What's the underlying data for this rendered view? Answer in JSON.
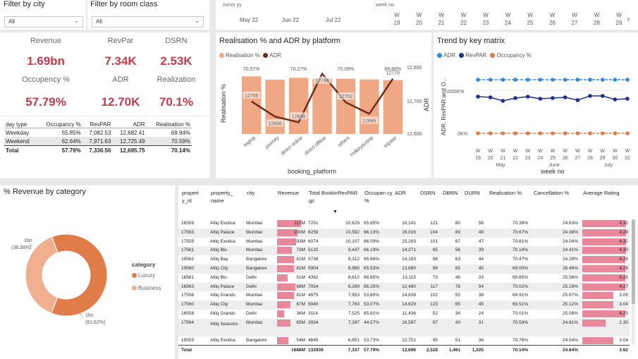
{
  "slicers": {
    "city": {
      "title": "Filter by city",
      "value": "All"
    },
    "room": {
      "title": "Filter by room class",
      "value": "All"
    }
  },
  "date_slicer": {
    "label1": "mmm yy",
    "label2": "week no",
    "months": [
      "May 22",
      "Jun 22",
      "Jul 22"
    ],
    "weeks": [
      {
        "w": "W",
        "n": "19"
      },
      {
        "w": "W",
        "n": "20"
      },
      {
        "w": "W",
        "n": "21"
      },
      {
        "w": "W",
        "n": "22"
      },
      {
        "w": "W",
        "n": "23"
      },
      {
        "w": "W",
        "n": "24"
      },
      {
        "w": "W",
        "n": "25"
      },
      {
        "w": "W",
        "n": "26"
      },
      {
        "w": "W",
        "n": "27"
      },
      {
        "w": "W",
        "n": "28"
      },
      {
        "w": "W",
        "n": "29"
      }
    ],
    "next": "›"
  },
  "kpis": [
    {
      "label": "Revenue",
      "value": "1.69bn"
    },
    {
      "label": "RevPar",
      "value": "7.34K"
    },
    {
      "label": "DSRN",
      "value": "2.53K"
    },
    {
      "label": "Occupency %",
      "value": "57.79%"
    },
    {
      "label": "ADR",
      "value": "12.70K"
    },
    {
      "label": "Realization",
      "value": "70.1%"
    }
  ],
  "daytype": {
    "headers": [
      "day type",
      "Occupancy %",
      "RevPAR",
      "ADR",
      "Realisation %"
    ],
    "rows": [
      [
        "Weekday",
        "55.85%",
        "7,082.53",
        "12,682.41",
        "69.94%"
      ],
      [
        "Weekend",
        "62.64%",
        "7,971.63",
        "12,725.49",
        "70.59%"
      ]
    ],
    "total": [
      "Total",
      "57.79%",
      "7,336.56",
      "12,695.75",
      "70.14%"
    ]
  },
  "colors": {
    "salmon": "#f0a884",
    "dark": "#6b2f1e",
    "red": "#c23d4d",
    "blue": "#2d8ae0",
    "navy": "#1f2f8f",
    "orange": "#e07b4a",
    "pink": "#e8889a"
  },
  "platform_chart": {
    "title": "Realisation % and ADR by platform",
    "legend": [
      "Realisation %",
      "ADR"
    ],
    "y_left_label": "Realisation %",
    "y_right_label": "ADR",
    "x_label": "booking_platform",
    "y_right_ticks": [
      "12,800",
      "12,700",
      "12,600"
    ],
    "chart_data": {
      "type": "bar",
      "categories": [
        "logtrip",
        "journey",
        "direct online",
        "direct offline",
        "others",
        "makeyourtrip",
        "tripster"
      ],
      "series": [
        {
          "name": "Realisation %",
          "values": [
            70.57,
            69.9,
            70.27,
            70.1,
            70.09,
            69.95,
            69.8
          ],
          "labels": [
            "70.57%",
            "",
            "70.27%",
            "",
            "70.09%",
            "",
            "69.80%"
          ]
        },
        {
          "name": "ADR",
          "values": [
            12705,
            12656,
            12638,
            12794,
            12702,
            12665,
            12778
          ]
        }
      ],
      "y_right_range": [
        12600,
        12800
      ]
    }
  },
  "trend_chart": {
    "title": "Trend by key matrix",
    "legend": [
      "ADR",
      "RevPAR",
      "Occupancy %"
    ],
    "y_label": "ADR, RevPAR and O...",
    "y_ticks": [
      "1000K%",
      "0K%"
    ],
    "x_label": "week no",
    "x_weeks": [
      "19",
      "20",
      "21",
      "22",
      "23",
      "24",
      "25",
      "26",
      "27",
      "28",
      "29",
      "30",
      "31"
    ],
    "x_w": "W",
    "months": [
      "May",
      "June",
      "July"
    ],
    "chart_data": {
      "type": "line",
      "x": [
        "W 19",
        "W 20",
        "W 21",
        "W 22",
        "W 23",
        "W 24",
        "W 25",
        "W 26",
        "W 27",
        "W 28",
        "W 29",
        "W 30",
        "W 31"
      ],
      "series": [
        {
          "name": "ADR",
          "values": [
            12.7,
            12.7,
            12.7,
            12.7,
            12.7,
            12.7,
            12.7,
            12.7,
            12.7,
            12.7,
            12.7,
            12.7,
            12.7
          ]
        },
        {
          "name": "RevPAR",
          "values": [
            7.5,
            7.4,
            6.9,
            7.3,
            7.5,
            7.2,
            7.3,
            7.4,
            7.0,
            7.6,
            7.6,
            7.1,
            7.2
          ]
        },
        {
          "name": "Occupancy %",
          "values": [
            0.6,
            0.6,
            0.6,
            0.6,
            0.6,
            0.6,
            0.6,
            0.6,
            0.6,
            0.6,
            0.6,
            0.6,
            0.6
          ]
        }
      ]
    }
  },
  "donut": {
    "title": "% Revenue by category",
    "legend_title": "category",
    "chart_data": {
      "type": "pie",
      "labels": [
        "Luxury",
        "Business"
      ],
      "values": [
        61.62,
        38.38
      ],
      "value_labels": [
        "1bn (61.62%)",
        "1bn (38.38%)"
      ]
    },
    "label_luxury_1": "1bn",
    "label_luxury_2": "(61.62%)",
    "label_business_1": "1bn",
    "label_business_2": "(38.38%)"
  },
  "prop_table": {
    "headers": [
      "propert y_id",
      "property_ name",
      "city",
      "Revenue",
      "Total Bookin gs",
      "RevPAR",
      "Occupan cy %",
      "ADR",
      "DSRN",
      "DBRN",
      "DURN",
      "Realisation %",
      "Cancellation %",
      "Average Rating"
    ],
    "rows": [
      [
        "16559",
        "Atliq Exotica",
        "Mumbai",
        "117M",
        "7251",
        "10,629",
        "65.85%",
        "16,141",
        "121",
        "80",
        "56",
        "70.39%",
        "24.63%",
        "4.32"
      ],
      [
        "17563",
        "Atliq Palace",
        "Mumbai",
        "100M",
        "6259",
        "10,592",
        "66.13%",
        "16,016",
        "104",
        "69",
        "49",
        "70.67%",
        "24.38%",
        "4.29"
      ],
      [
        "17559",
        "Atliq Exotica",
        "Mumbai",
        "93M",
        "6074",
        "10,107",
        "66.09%",
        "15,293",
        "101",
        "67",
        "47",
        "70.81%",
        "24.04%",
        "4.32"
      ],
      [
        "17561",
        "Atliq Blu",
        "Mumbai",
        "73M",
        "5120",
        "9,447",
        "66.19%",
        "14,271",
        "85",
        "56",
        "39",
        "70.14%",
        "24.41%",
        "4.30"
      ],
      [
        "19562",
        "Atliq Bay",
        "Bangalore",
        "81M",
        "5736",
        "9,312",
        "65.66%",
        "14,183",
        "96",
        "63",
        "44",
        "70.47%",
        "24.29%",
        "4.28"
      ],
      [
        "19560",
        "Atliq City",
        "Bangalore",
        "81M",
        "5904",
        "8,965",
        "65.53%",
        "13,680",
        "99",
        "65",
        "45",
        "69.00%",
        "26.46%",
        "4.28"
      ],
      [
        "16561",
        "Atliq Blu",
        "Delhi",
        "51M",
        "4362",
        "8,612",
        "66.65%",
        "13,115",
        "73",
        "48",
        "33",
        "69.85%",
        "25.56%",
        "4.28"
      ],
      [
        "16563",
        "Atliq Palace",
        "Delhi",
        "88M",
        "7054",
        "8,269",
        "66.25%",
        "12,480",
        "117",
        "78",
        "54",
        "70.02%",
        "25.19%",
        "4.27"
      ],
      [
        "17558",
        "Atliq Grands",
        "Mumbai",
        "81M",
        "4975",
        "7,953",
        "53.60%",
        "14,839",
        "102",
        "55",
        "38",
        "69.91%",
        "25.67%",
        "3.05"
      ],
      [
        "17560",
        "Atliq City",
        "Mumbai",
        "67M",
        "5940",
        "7,763",
        "53.07%",
        "14,629",
        "123",
        "65",
        "45",
        "69.51%",
        "25.12%",
        "3.04"
      ],
      [
        "16558",
        "Atliq Grands",
        "Delhi",
        "36M",
        "3114",
        "7,525",
        "65.81%",
        "11,436",
        "52",
        "34",
        "24",
        "70.01%",
        "25.08%",
        "4.25"
      ],
      [
        "17564",
        "Atliq Seasons",
        "Mumbai",
        "65M",
        "3934",
        "7,397",
        "44.57%",
        "16,597",
        "97",
        "43",
        "31",
        "70.59%",
        "24.81%",
        "2.30"
      ],
      [
        "19559",
        "Atliq Exotica",
        "Bangalore",
        "54M",
        "4645",
        "6,851",
        "53.73%",
        "12,751",
        "95",
        "51",
        "36",
        "70.76%",
        "24.54%",
        "3.04"
      ]
    ],
    "total": [
      "Total",
      "",
      "",
      "1688M",
      "132939",
      "7,337",
      "57.79%",
      "12,696",
      "2,528",
      "1,461",
      "1,025",
      "70.14%",
      "24.84%",
      "3.62"
    ]
  }
}
